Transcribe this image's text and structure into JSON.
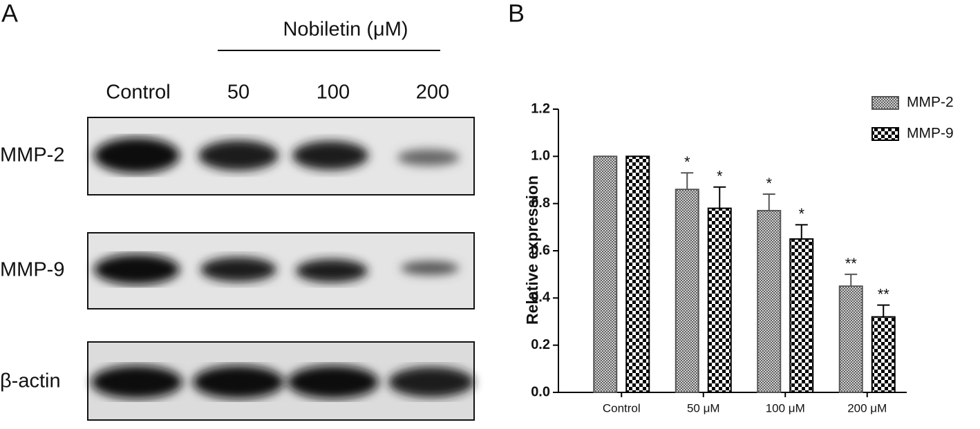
{
  "panel_a": {
    "label": "A",
    "treatment": "Nobiletin (μM)",
    "lanes": [
      "Control",
      "50",
      "100",
      "200"
    ],
    "rows": [
      "MMP-2",
      "MMP-9",
      "β-actin"
    ]
  },
  "chart_data": {
    "type": "bar",
    "label": "B",
    "y_label": "Relative expression",
    "categories": [
      "Control",
      "50 μM",
      "100 μM",
      "200 μM"
    ],
    "series": [
      {
        "name": "MMP-2",
        "color": "#555555",
        "pattern": "crosshatch",
        "values": [
          1.0,
          0.86,
          0.77,
          0.45
        ],
        "errors": [
          0,
          0.07,
          0.07,
          0.05
        ],
        "significance": [
          null,
          "*",
          "*",
          "**"
        ]
      },
      {
        "name": "MMP-9",
        "color": "#000000",
        "pattern": "checker",
        "values": [
          1.0,
          0.78,
          0.65,
          0.32
        ],
        "errors": [
          0,
          0.09,
          0.06,
          0.05
        ],
        "significance": [
          null,
          "*",
          "*",
          "**"
        ]
      }
    ],
    "ylim": [
      0,
      1.2
    ],
    "yticks": [
      {
        "value": 0,
        "label": "0.0"
      },
      0.2,
      0.4,
      0.6,
      0.8,
      {
        "value": 1,
        "label": "1.0"
      },
      1.2
    ],
    "legend": "top-right"
  }
}
